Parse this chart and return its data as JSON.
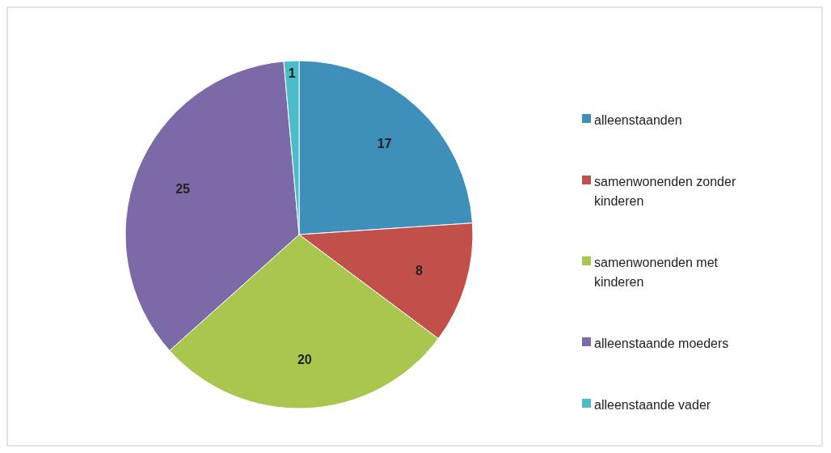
{
  "chart_data": {
    "type": "pie",
    "categories": [
      "alleenstaanden",
      "samenwonenden zonder kinderen",
      "samenwonenden met kinderen",
      "alleenstaande moeders",
      "alleenstaande vader"
    ],
    "values": [
      17,
      8,
      20,
      25,
      1
    ],
    "colors": [
      "#3f8fbb",
      "#c2504a",
      "#a9c64e",
      "#7b69a8",
      "#4cbcc8"
    ],
    "data_labels": true,
    "legend": "right"
  }
}
